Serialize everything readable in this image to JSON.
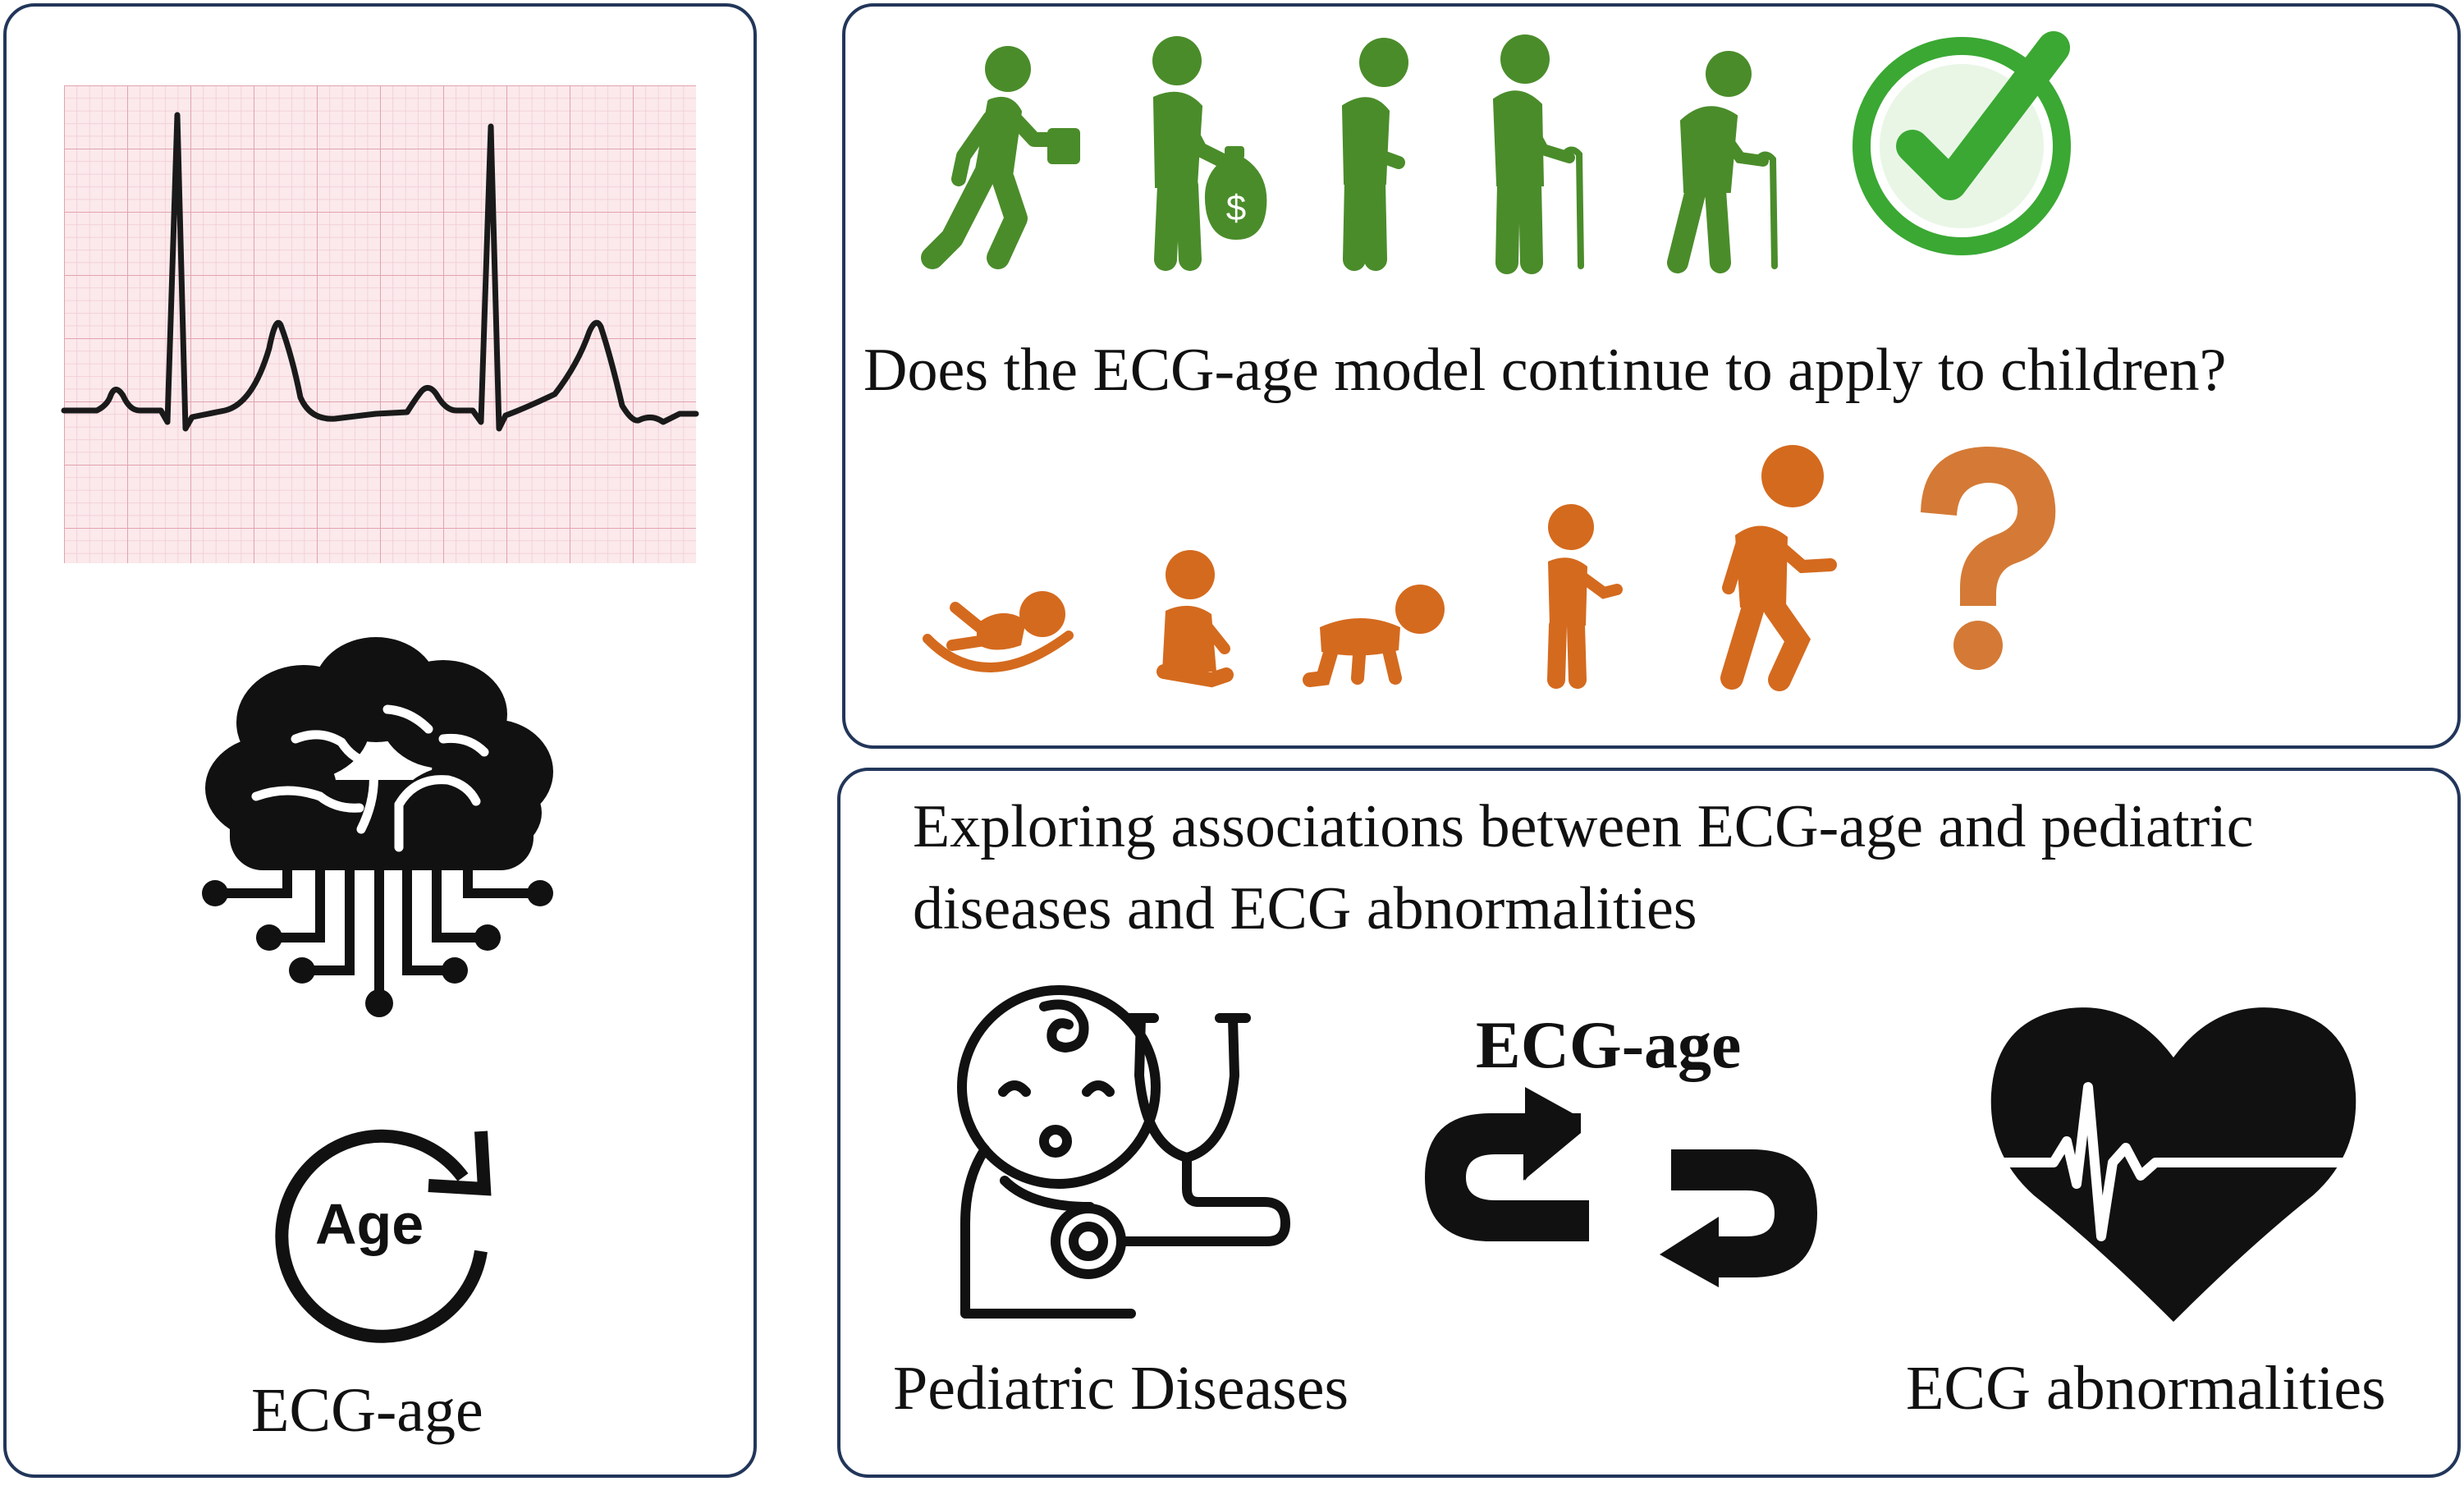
{
  "left_panel": {
    "icons": [
      "ecg-trace-icon",
      "ai-brain-circuit-icon",
      "age-cycle-icon"
    ],
    "age_icon_text": "Age",
    "caption": "ECG-age"
  },
  "top_panel": {
    "adult_icons": [
      "adult-walking-briefcase-icon",
      "adult-money-bag-icon",
      "middle-aged-icon",
      "elderly-cane-icon",
      "elderly-bent-cane-icon",
      "check-mark-icon"
    ],
    "question": "Does the ECG-age model continue to apply to children?",
    "child_icons": [
      "newborn-icon",
      "sitting-baby-icon",
      "crawling-baby-icon",
      "toddler-icon",
      "walking-child-icon",
      "question-mark-icon"
    ]
  },
  "bottom_panel": {
    "heading_line1": "Exploring associations between ECG-age and pediatric",
    "heading_line2": "diseases and ECG abnormalities",
    "center_label": "ECG-age",
    "left_label": "Pediatric Diseases",
    "right_label": "ECG abnormalities",
    "icons": [
      "baby-stethoscope-icon",
      "bidirectional-arrows-icon",
      "heart-ecg-icon"
    ]
  },
  "colors": {
    "border": "#22365a",
    "adult_green": "#4a8c2a",
    "child_orange": "#d46a1e",
    "ecg_grid": "#f4d3d8",
    "black": "#111111"
  }
}
